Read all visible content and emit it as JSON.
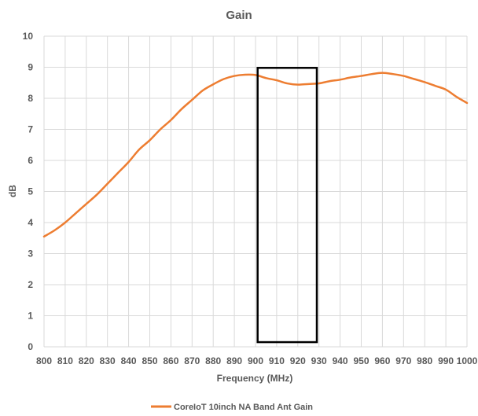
{
  "chart_data": {
    "type": "line",
    "title": "Gain",
    "xlabel": "Frequency (MHz)",
    "ylabel": "dB",
    "xlim": [
      800,
      1000
    ],
    "ylim": [
      0,
      10
    ],
    "x_ticks": [
      800,
      810,
      820,
      830,
      840,
      850,
      860,
      870,
      880,
      890,
      900,
      910,
      920,
      930,
      940,
      950,
      960,
      970,
      980,
      990,
      1000
    ],
    "x_tick_labels": [
      "800",
      "810",
      "820",
      "830",
      "840",
      "850",
      "860",
      "870",
      "880",
      "890",
      "900",
      "910",
      "920",
      "930",
      "940",
      "950",
      "960",
      "970",
      "980",
      "990",
      "1000"
    ],
    "y_ticks": [
      0,
      1,
      2,
      3,
      4,
      5,
      6,
      7,
      8,
      9,
      10
    ],
    "y_tick_labels": [
      "0",
      "1",
      "2",
      "3",
      "4",
      "5",
      "6",
      "7",
      "8",
      "9",
      "10"
    ],
    "grid": true,
    "legend_position": "bottom",
    "series": [
      {
        "name": "CoreIoT 10inch NA Band Ant Gain",
        "color": "#ED7D31",
        "x": [
          800,
          805,
          810,
          815,
          820,
          825,
          830,
          835,
          840,
          845,
          850,
          855,
          860,
          865,
          870,
          875,
          880,
          885,
          890,
          895,
          900,
          905,
          910,
          915,
          920,
          925,
          930,
          935,
          940,
          945,
          950,
          955,
          960,
          965,
          970,
          975,
          980,
          985,
          990,
          995,
          1000
        ],
        "y": [
          3.55,
          3.75,
          4.0,
          4.3,
          4.6,
          4.9,
          5.25,
          5.6,
          5.95,
          6.35,
          6.65,
          7.0,
          7.3,
          7.65,
          7.95,
          8.25,
          8.45,
          8.62,
          8.72,
          8.76,
          8.75,
          8.65,
          8.58,
          8.48,
          8.44,
          8.46,
          8.48,
          8.55,
          8.6,
          8.67,
          8.72,
          8.78,
          8.82,
          8.78,
          8.72,
          8.62,
          8.52,
          8.4,
          8.28,
          8.05,
          7.85
        ]
      }
    ],
    "annotations": [
      {
        "type": "rectangle",
        "x_range": [
          901,
          929
        ],
        "y_range": [
          0.15,
          8.98
        ],
        "color": "#000000"
      }
    ]
  }
}
